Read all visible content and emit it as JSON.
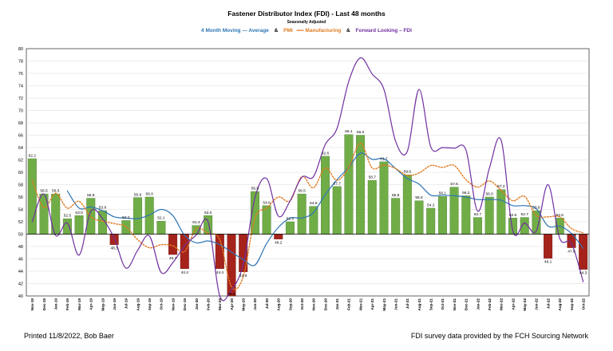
{
  "chart_data": {
    "type": "bar",
    "title": "Fastener Distributor Index (FDI) - Last 48 months",
    "subtitle": "Seasonally Adjusted",
    "legend": [
      {
        "text": "4 Month Moving — Average",
        "color": "#2e75b6"
      },
      {
        "text": "&",
        "color": "#000000"
      },
      {
        "text": "PMI",
        "color": "#e07b20"
      },
      {
        "text": "•••• Manufacturing",
        "color": "#e07b20"
      },
      {
        "text": "&",
        "color": "#000000"
      },
      {
        "text": "Forward Looking – FDI",
        "color": "#7030a0"
      }
    ],
    "ylim": [
      40,
      80
    ],
    "yticks": [
      40,
      42,
      44,
      46,
      48,
      50,
      52,
      54,
      56,
      58,
      60,
      62,
      64,
      66,
      68,
      70,
      72,
      74,
      76,
      78,
      80
    ],
    "baseline": 50,
    "grid": true,
    "categories": [
      "Nov-18",
      "Dec-18",
      "Jan-19",
      "Feb-19",
      "Mar-19",
      "Apr-19",
      "May-19",
      "Jun-19",
      "Jul-19",
      "Aug-19",
      "Sep-19",
      "Oct-19",
      "Nov-19",
      "Dec-19",
      "Jan-20",
      "Feb-20",
      "Mar-20",
      "Apr-20",
      "May-20",
      "Jun-20",
      "Jul-20",
      "Aug-20",
      "Sep-20",
      "Oct-20",
      "Nov-20",
      "Dec-20",
      "Jan-21",
      "Feb-21",
      "Mar-21",
      "Apr-21",
      "May-21",
      "Jun-21",
      "Jul-21",
      "Aug-21",
      "Sep-21",
      "Oct-21",
      "Nov-21",
      "Dec-21",
      "Jan-22",
      "Feb-22",
      "Mar-22",
      "Apr-22",
      "May-22",
      "Jun-22",
      "Jul-22",
      "Aug-22",
      "Sep-22",
      "Oct-22"
    ],
    "colors": {
      "positive": "#70ad47",
      "negative": "#a5231b",
      "positive_edge": "#4e7d31",
      "negative_edge": "#6e1510"
    },
    "series": [
      {
        "name": "FDI",
        "kind": "bar",
        "values": [
          62.2,
          56.5,
          56.5,
          52.5,
          53.0,
          55.8,
          53.8,
          48.3,
          52.2,
          55.9,
          56.0,
          52.1,
          46.7,
          44.4,
          51.4,
          53.0,
          44.4,
          39.8,
          43.9,
          56.9,
          54.6,
          49.2,
          52.0,
          56.5,
          54.5,
          62.6,
          57.7,
          66.1,
          66.0,
          58.7,
          61.7,
          55.8,
          59.6,
          55.4,
          54.2,
          56.1,
          57.6,
          56.2,
          52.7,
          56.0,
          57.2,
          52.6,
          52.7,
          53.8,
          46.1,
          52.6,
          47.8,
          44.3
        ],
        "labels": [
          "62.2",
          "56.5",
          "56.5",
          "52.5",
          "53.0",
          "55.8",
          "53.8",
          "48.3",
          "52.2",
          "55.9",
          "56.0",
          "52.1",
          "46.7",
          "44.4",
          "51.4",
          "53.0",
          "44.4",
          "39.8",
          "43.9",
          "56.9",
          "54.6",
          "49.2",
          "52.0",
          "56.5",
          "54.5",
          "62.6",
          "57.7",
          "66.1",
          "66.0",
          "58.7",
          "61.7",
          "55.8",
          "59.6",
          "55.4",
          "54.2",
          "56.1",
          "57.6",
          "56.2",
          "52.7",
          "56.0",
          "57.2",
          "52.6",
          "52.7",
          "53.8",
          "46.1",
          "52.6",
          "47.8",
          "44.3"
        ]
      },
      {
        "name": "4 Month Moving Average",
        "kind": "line",
        "color": "#2e75b6",
        "style": "solid",
        "values": [
          null,
          null,
          null,
          57.0,
          54.2,
          54.4,
          53.8,
          52.8,
          52.6,
          52.5,
          53.1,
          54.0,
          53.0,
          49.8,
          48.6,
          48.9,
          48.3,
          47.1,
          45.9,
          45.0,
          48.5,
          51.1,
          52.6,
          52.6,
          53.5,
          56.4,
          58.8,
          60.8,
          63.1,
          62.1,
          62.2,
          60.6,
          59.0,
          58.1,
          56.3,
          56.3,
          56.2,
          56.0,
          55.6,
          55.6,
          55.5,
          54.6,
          54.6,
          54.1,
          51.3,
          51.3,
          50.1,
          47.7
        ]
      },
      {
        "name": "PMI Manufacturing",
        "kind": "line",
        "color": "#e07b20",
        "style": "dotted",
        "values": [
          58.7,
          54.3,
          56.6,
          54.2,
          55.3,
          52.8,
          52.1,
          51.7,
          51.2,
          49.1,
          47.8,
          48.3,
          48.1,
          47.2,
          50.9,
          50.1,
          49.1,
          41.5,
          43.1,
          52.6,
          54.2,
          56.0,
          55.4,
          59.3,
          57.5,
          60.7,
          58.7,
          60.8,
          64.7,
          60.7,
          61.2,
          60.6,
          59.5,
          59.9,
          61.1,
          60.8,
          61.1,
          58.8,
          57.6,
          58.6,
          57.1,
          55.4,
          56.1,
          53.0,
          52.8,
          52.8,
          50.9,
          50.2
        ]
      },
      {
        "name": "Forward Looking FDI",
        "kind": "line",
        "color": "#7030a0",
        "style": "solid",
        "values": [
          52.0,
          56.5,
          49.8,
          51.8,
          46.6,
          53.7,
          52.5,
          49.3,
          44.5,
          47.4,
          49.7,
          43.8,
          45.4,
          48.1,
          49.9,
          52.0,
          39.9,
          41.0,
          45.1,
          55.9,
          59.0,
          52.9,
          55.4,
          59.2,
          59.3,
          64.5,
          67.1,
          74.7,
          78.5,
          75.9,
          73.4,
          65.0,
          63.4,
          73.4,
          64.1,
          64.0,
          63.9,
          63.6,
          53.7,
          60.7,
          65.2,
          50.5,
          51.8,
          50.5,
          58.0,
          49.3,
          48.5,
          42.3
        ]
      }
    ]
  },
  "footer": {
    "left": "Printed 11/8/2022, Bob Baer",
    "right": "FDI survey data provided by the FCH Sourcing Network"
  }
}
